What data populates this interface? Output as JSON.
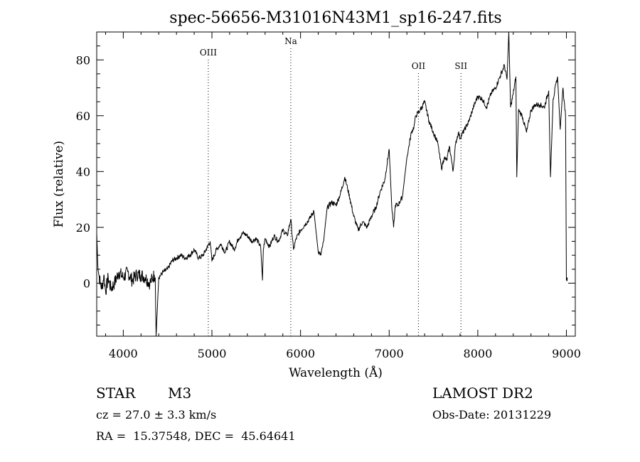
{
  "chart_data": {
    "type": "line",
    "title": "spec-56656-M31016N43M1_sp16-247.fits",
    "xlabel": "Wavelength (Å)",
    "ylabel": "Flux (relative)",
    "xlim": [
      3700,
      9100
    ],
    "ylim": [
      -19,
      90
    ],
    "x_ticks": [
      4000,
      5000,
      6000,
      7000,
      8000,
      9000
    ],
    "y_ticks": [
      0,
      20,
      40,
      60,
      80
    ],
    "grid": false,
    "line_color": "#000000",
    "series": [
      {
        "x": [
          3700,
          3710,
          3720,
          3740,
          3760,
          3780,
          3800,
          3830,
          3860,
          3900,
          3950,
          4000,
          4050,
          4100,
          4150,
          4200,
          4250,
          4300,
          4350,
          4360,
          4370,
          4400,
          4450,
          4500,
          4550,
          4600,
          4650,
          4700,
          4750,
          4800,
          4850,
          4900,
          4950,
          4980,
          5000,
          5050,
          5100,
          5150,
          5200,
          5250,
          5300,
          5350,
          5400,
          5450,
          5500,
          5550,
          5570,
          5580,
          5600,
          5650,
          5700,
          5750,
          5800,
          5850,
          5890,
          5920,
          5950,
          6000,
          6050,
          6100,
          6150,
          6200,
          6230,
          6260,
          6300,
          6350,
          6400,
          6450,
          6500,
          6530,
          6560,
          6600,
          6650,
          6700,
          6750,
          6800,
          6850,
          6900,
          6950,
          7000,
          7030,
          7050,
          7070,
          7100,
          7150,
          7200,
          7250,
          7280,
          7300,
          7350,
          7400,
          7450,
          7500,
          7550,
          7590,
          7620,
          7650,
          7680,
          7700,
          7720,
          7750,
          7780,
          7800,
          7850,
          7900,
          7950,
          8000,
          8050,
          8100,
          8150,
          8200,
          8250,
          8300,
          8330,
          8350,
          8370,
          8400,
          8430,
          8440,
          8460,
          8500,
          8550,
          8600,
          8650,
          8700,
          8750,
          8800,
          8820,
          8850,
          8900,
          8930,
          8960,
          8990,
          9000,
          9010
        ],
        "y": [
          18,
          9,
          4,
          0,
          -2,
          3,
          -3,
          2,
          -2,
          0,
          4,
          2,
          4,
          1,
          3,
          3,
          2,
          0,
          3,
          2,
          -19,
          2,
          4,
          5,
          8,
          9,
          10,
          9,
          10,
          12,
          9,
          10,
          13,
          15,
          8,
          12,
          14,
          11,
          15,
          12,
          16,
          18,
          17,
          15,
          16,
          13,
          1,
          12,
          16,
          13,
          17,
          15,
          19,
          17,
          23,
          12,
          16,
          19,
          21,
          23,
          26,
          11,
          10,
          15,
          27,
          29,
          28,
          32,
          38,
          34,
          30,
          24,
          19,
          22,
          20,
          24,
          27,
          33,
          37,
          48,
          27,
          20,
          28,
          28,
          31,
          45,
          54,
          56,
          60,
          62,
          65,
          58,
          54,
          50,
          41,
          45,
          44,
          49,
          45,
          40,
          50,
          54,
          52,
          55,
          58,
          63,
          67,
          66,
          63,
          68,
          70,
          74,
          78,
          73,
          90,
          63,
          68,
          74,
          38,
          62,
          60,
          54,
          62,
          64,
          64,
          63,
          69,
          38,
          66,
          74,
          55,
          70,
          60,
          1,
          2
        ]
      }
    ],
    "lines": [
      {
        "label": "OIII",
        "x": 4959
      },
      {
        "label": "Na",
        "x": 5890
      },
      {
        "label": "OII",
        "x": 7330
      },
      {
        "label": "SII",
        "x": 7810
      }
    ]
  },
  "meta": {
    "object_class": "STAR",
    "subclass": "M3",
    "survey": "LAMOST DR2",
    "cz": "cz = 27.0 ± 3.3 km/s",
    "obs_date": "Obs-Date: 20131229",
    "coords": "RA =  15.37548, DEC =  45.64641"
  }
}
